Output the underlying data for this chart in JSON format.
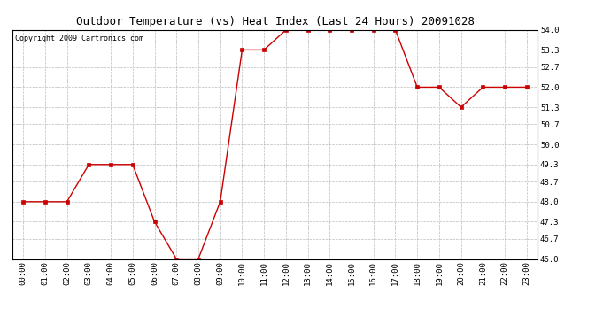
{
  "title": "Outdoor Temperature (vs) Heat Index (Last 24 Hours) 20091028",
  "copyright": "Copyright 2009 Cartronics.com",
  "x_labels": [
    "00:00",
    "01:00",
    "02:00",
    "03:00",
    "04:00",
    "05:00",
    "06:00",
    "07:00",
    "08:00",
    "09:00",
    "10:00",
    "11:00",
    "12:00",
    "13:00",
    "14:00",
    "15:00",
    "16:00",
    "17:00",
    "18:00",
    "19:00",
    "20:00",
    "21:00",
    "22:00",
    "23:00"
  ],
  "y_values": [
    48.0,
    48.0,
    48.0,
    49.3,
    49.3,
    49.3,
    47.3,
    46.0,
    46.0,
    48.0,
    53.3,
    53.3,
    54.0,
    54.0,
    54.0,
    54.0,
    54.0,
    54.0,
    52.0,
    52.0,
    51.3,
    52.0,
    52.0,
    52.0
  ],
  "y_ticks": [
    46.0,
    46.7,
    47.3,
    48.0,
    48.7,
    49.3,
    50.0,
    50.7,
    51.3,
    52.0,
    52.7,
    53.3,
    54.0
  ],
  "ylim": [
    46.0,
    54.0
  ],
  "line_color": "#cc0000",
  "marker": "s",
  "marker_size": 3,
  "background_color": "#ffffff",
  "plot_bg_color": "#ffffff",
  "grid_color": "#bbbbbb",
  "grid_style": "--",
  "title_fontsize": 9,
  "tick_fontsize": 6.5,
  "copyright_fontsize": 6
}
